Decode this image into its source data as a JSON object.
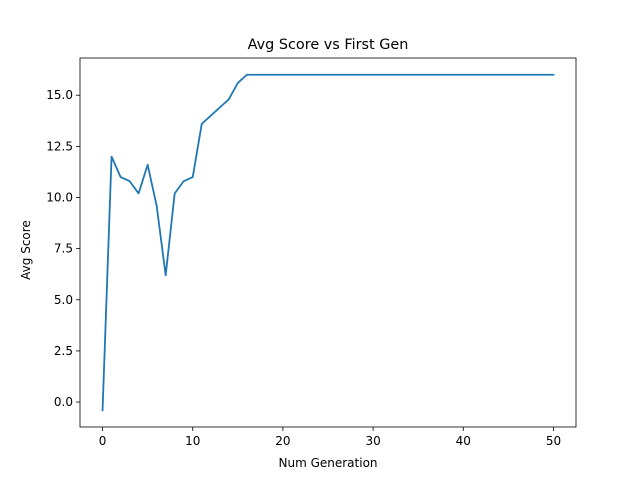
{
  "chart_data": {
    "type": "line",
    "title": "Avg Score vs First Gen",
    "xlabel": "Num Generation",
    "ylabel": "Avg Score",
    "xlim": [
      -2.5,
      52.5
    ],
    "ylim": [
      -1.22,
      16.82
    ],
    "xticks": [
      0,
      10,
      20,
      30,
      40,
      50
    ],
    "xtick_labels": [
      "0",
      "10",
      "20",
      "30",
      "40",
      "50"
    ],
    "yticks": [
      0,
      2.5,
      5,
      7.5,
      10,
      12.5,
      15
    ],
    "ytick_labels": [
      "0.0",
      "2.5",
      "5.0",
      "7.5",
      "10.0",
      "12.5",
      "15.0"
    ],
    "grid": false,
    "series": [
      {
        "color": "#1f77b4",
        "x": [
          0,
          1,
          2,
          3,
          4,
          5,
          6,
          7,
          8,
          9,
          10,
          11,
          12,
          13,
          14,
          15,
          16,
          17,
          18,
          19,
          20,
          21,
          22,
          23,
          24,
          25,
          26,
          27,
          28,
          29,
          30,
          31,
          32,
          33,
          34,
          35,
          36,
          37,
          38,
          39,
          40,
          41,
          42,
          43,
          44,
          45,
          46,
          47,
          48,
          49,
          50
        ],
        "y": [
          -0.4,
          12.0,
          11.0,
          10.8,
          10.2,
          11.6,
          9.6,
          6.2,
          10.2,
          10.8,
          11.0,
          13.6,
          14.0,
          14.4,
          14.8,
          15.6,
          16.0,
          16.0,
          16.0,
          16.0,
          16.0,
          16.0,
          16.0,
          16.0,
          16.0,
          16.0,
          16.0,
          16.0,
          16.0,
          16.0,
          16.0,
          16.0,
          16.0,
          16.0,
          16.0,
          16.0,
          16.0,
          16.0,
          16.0,
          16.0,
          16.0,
          16.0,
          16.0,
          16.0,
          16.0,
          16.0,
          16.0,
          16.0,
          16.0,
          16.0,
          16.0
        ]
      }
    ]
  }
}
